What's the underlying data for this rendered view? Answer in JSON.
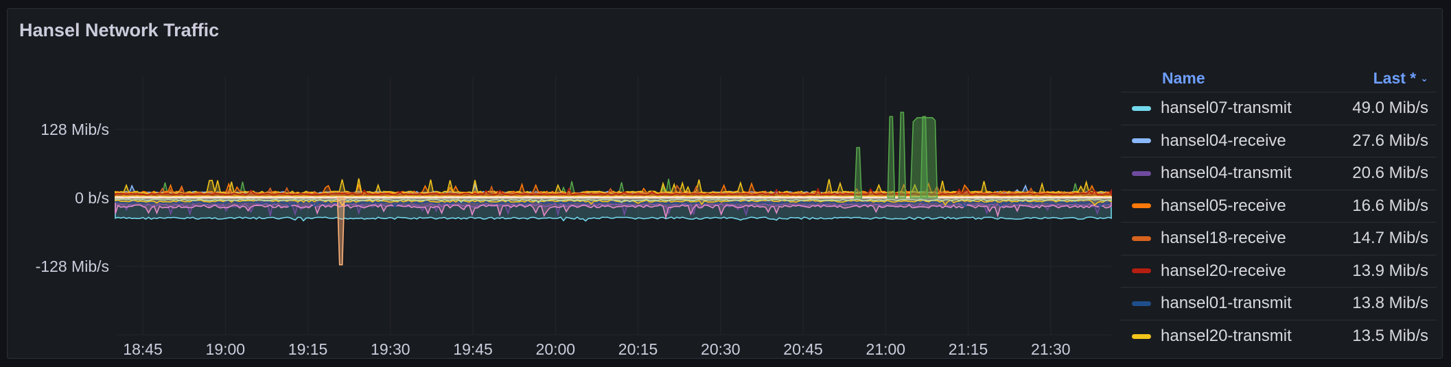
{
  "panel": {
    "title": "Hansel Network Traffic"
  },
  "legend": {
    "header_name": "Name",
    "header_value": "Last *",
    "sort_icon": "chevron-down-icon",
    "rows": [
      {
        "name": "hansel07-transmit",
        "value": "49.0 Mib/s",
        "color": "#73d8ec"
      },
      {
        "name": "hansel04-receive",
        "value": "27.6 Mib/s",
        "color": "#8ab8ff"
      },
      {
        "name": "hansel04-transmit",
        "value": "20.6 Mib/s",
        "color": "#6e4b9e"
      },
      {
        "name": "hansel05-receive",
        "value": "16.6 Mib/s",
        "color": "#ff780a"
      },
      {
        "name": "hansel18-receive",
        "value": "14.7 Mib/s",
        "color": "#d6631f"
      },
      {
        "name": "hansel20-receive",
        "value": "13.9 Mib/s",
        "color": "#b51e10"
      },
      {
        "name": "hansel01-transmit",
        "value": "13.8 Mib/s",
        "color": "#1f4f8a"
      },
      {
        "name": "hansel20-transmit",
        "value": "13.5 Mib/s",
        "color": "#f2c41c"
      }
    ]
  },
  "chart_data": {
    "type": "area",
    "title": "Hansel Network Traffic",
    "y_ticks": [
      "128 Mib/s",
      "0 b/s",
      "-128 Mib/s"
    ],
    "x_ticks": [
      "18:45",
      "19:00",
      "19:15",
      "19:30",
      "19:45",
      "20:00",
      "20:15",
      "20:30",
      "20:45",
      "21:00",
      "21:15",
      "21:30"
    ],
    "ylim": [
      -256,
      256
    ],
    "grid": true,
    "legend_placement": "right",
    "series": [
      {
        "name": "hansel07-transmit",
        "color": "#73d8ec",
        "direction": "negative",
        "last": 49.0
      },
      {
        "name": "hansel04-receive",
        "color": "#8ab8ff",
        "direction": "positive",
        "last": 27.6
      },
      {
        "name": "hansel04-transmit",
        "color": "#6e4b9e",
        "direction": "negative",
        "last": 20.6
      },
      {
        "name": "hansel05-receive",
        "color": "#ff780a",
        "direction": "positive",
        "last": 16.6
      },
      {
        "name": "hansel18-receive",
        "color": "#d6631f",
        "direction": "positive",
        "last": 14.7
      },
      {
        "name": "hansel20-receive",
        "color": "#b51e10",
        "direction": "positive",
        "last": 13.9
      },
      {
        "name": "hansel01-transmit",
        "color": "#1f4f8a",
        "direction": "negative",
        "last": 13.8
      },
      {
        "name": "hansel20-transmit",
        "color": "#f2c41c",
        "direction": "negative",
        "last": 13.5
      }
    ],
    "peaks": [
      {
        "series": "green-receive",
        "color": "#56a64b",
        "time": "20:55",
        "value": 94
      },
      {
        "series": "green-receive",
        "color": "#56a64b",
        "time": "21:01",
        "value": 152
      },
      {
        "series": "green-receive",
        "color": "#56a64b",
        "time": "21:03",
        "value": 160
      },
      {
        "series": "green-receive",
        "color": "#56a64b",
        "time": "21:07",
        "value": 152
      },
      {
        "series": "peach-transmit",
        "color": "#ffb27a",
        "time": "19:21",
        "value": -125
      }
    ]
  }
}
